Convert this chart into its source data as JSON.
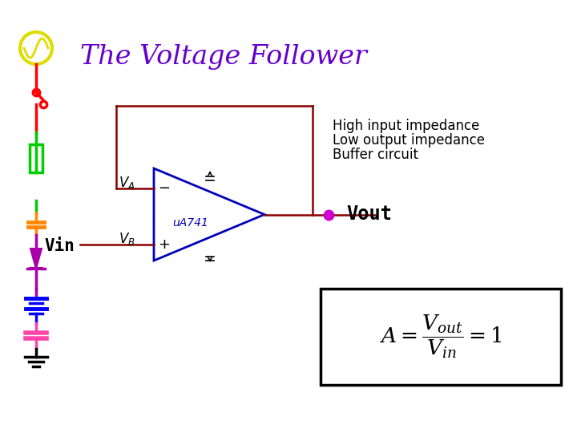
{
  "title": "The Voltage Follower",
  "title_color": "#6600cc",
  "title_fontsize": 24,
  "bg_color": "#ffffff",
  "text_high_imp": "High input impedance",
  "text_low_imp": "Low output impedance",
  "text_buffer": "Buffer circuit",
  "text_vout": "Vout",
  "text_vin": "Vin",
  "text_ua741": "uA741",
  "op_color": "#0000bb",
  "wire_color": "#8b0000",
  "vout_dot_color": "#cc00cc",
  "ac_circle_color": "#dddd00",
  "ac_wave_color": "#dddd00",
  "switch_color": "#ff0000",
  "green_resistor_color": "#00cc00",
  "orange_cap_color": "#ff8800",
  "purple_wire_color": "#aa00aa",
  "blue_battery_color": "#0000ff",
  "pink_cap_color": "#ff44aa",
  "ground_color": "#000000"
}
